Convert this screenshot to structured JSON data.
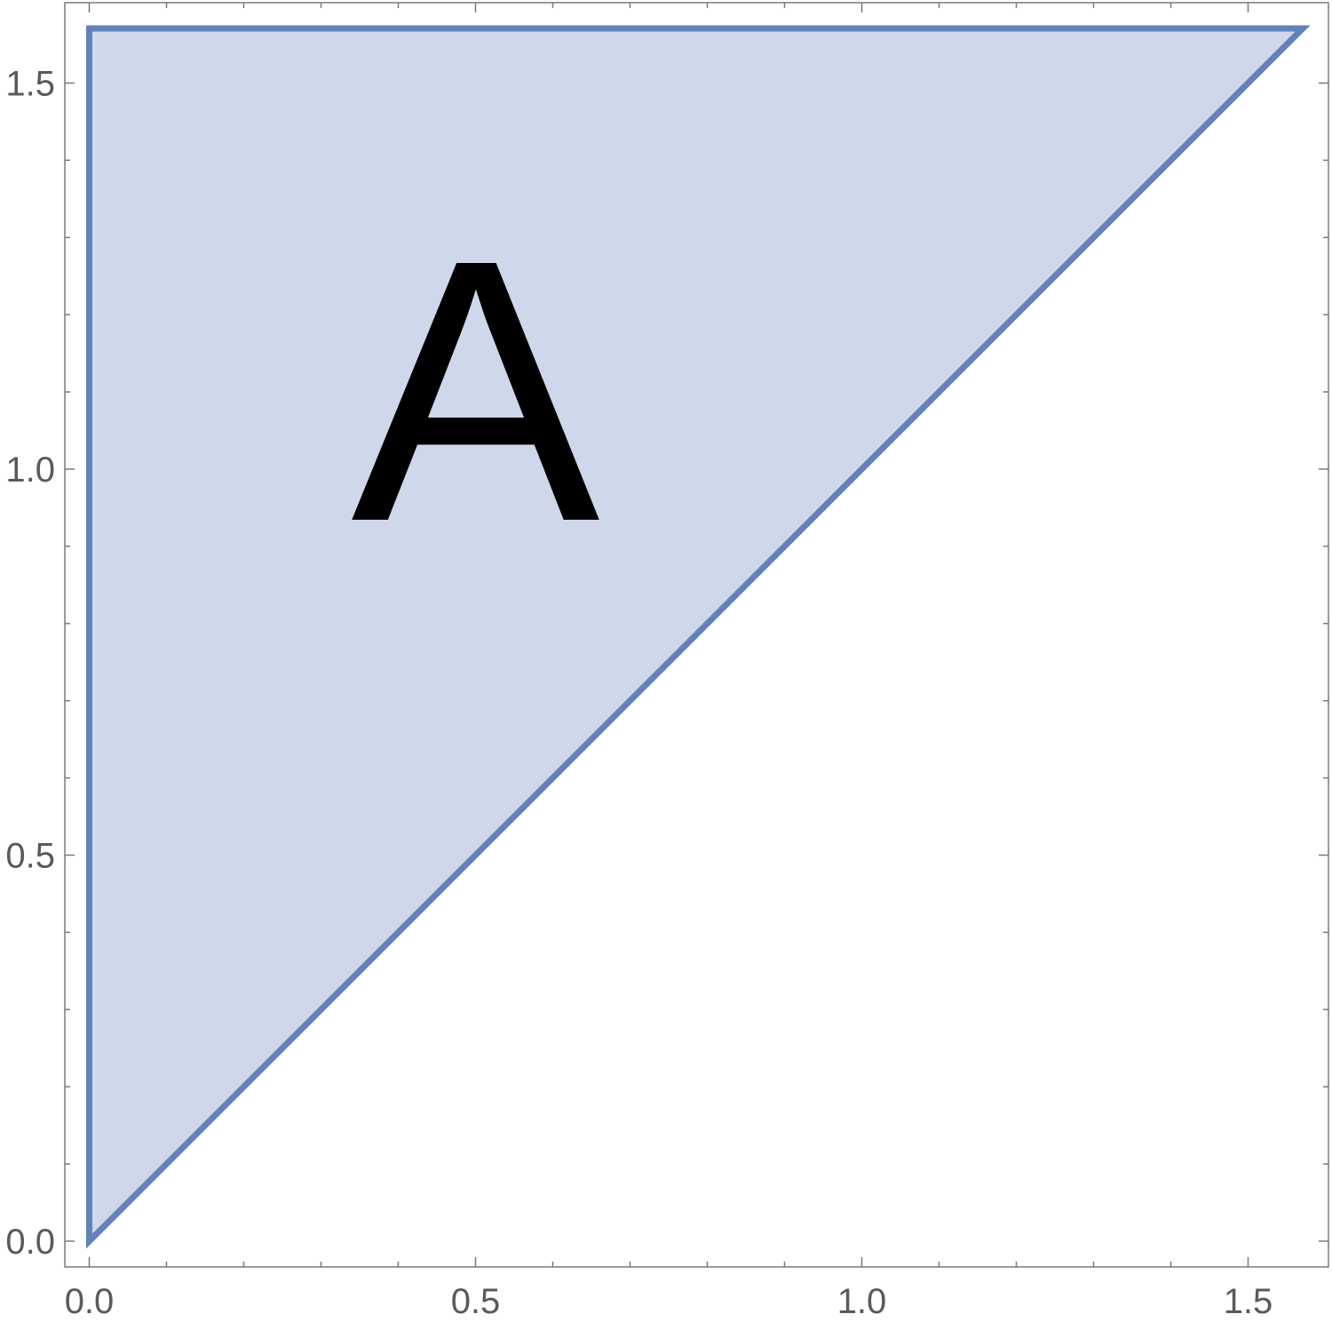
{
  "chart_data": {
    "type": "area",
    "title": "",
    "xlabel": "",
    "ylabel": "",
    "xlim": [
      -0.03,
      1.6
    ],
    "ylim": [
      -0.03,
      1.6
    ],
    "grid": false,
    "x_ticks": [
      {
        "value": 0.0,
        "label": "0.0"
      },
      {
        "value": 0.5,
        "label": "0.5"
      },
      {
        "value": 1.0,
        "label": "1.0"
      },
      {
        "value": 1.5,
        "label": "1.5"
      }
    ],
    "y_ticks": [
      {
        "value": 0.0,
        "label": "0.0"
      },
      {
        "value": 0.5,
        "label": "0.5"
      },
      {
        "value": 1.0,
        "label": "1.0"
      },
      {
        "value": 1.5,
        "label": "1.5"
      }
    ],
    "region": {
      "vertices": [
        [
          0,
          0
        ],
        [
          0,
          1.5708
        ],
        [
          1.5708,
          1.5708
        ]
      ],
      "fill_color": "#cfd8ea",
      "edge_color": "#6283b8"
    },
    "annotations": [
      {
        "text": "A",
        "x": 0.5,
        "y": 1.1
      }
    ]
  }
}
